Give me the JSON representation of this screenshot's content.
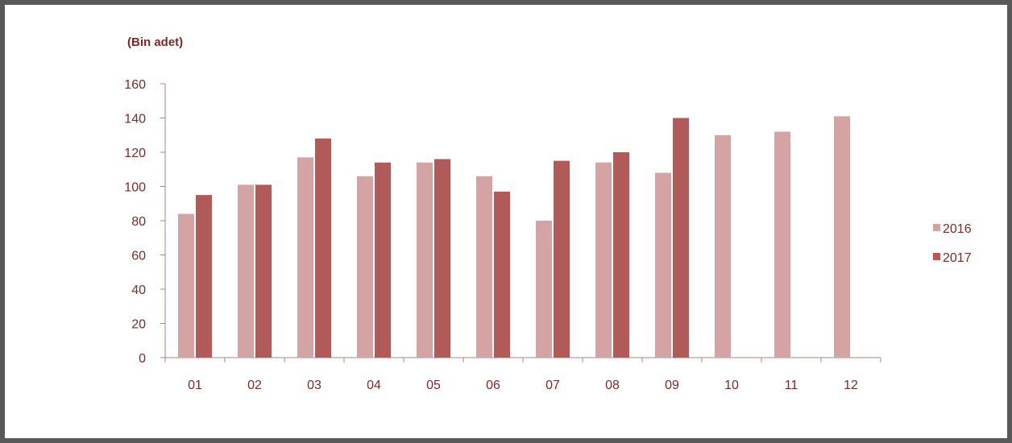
{
  "chart_data": {
    "type": "bar",
    "unit_label": "(Bin adet)",
    "categories": [
      "01",
      "02",
      "03",
      "04",
      "05",
      "06",
      "07",
      "08",
      "09",
      "10",
      "11",
      "12"
    ],
    "series": [
      {
        "name": "2016",
        "color": "#d4a3a3",
        "values": [
          84,
          101,
          117,
          106,
          114,
          106,
          80,
          114,
          108,
          130,
          132,
          141
        ]
      },
      {
        "name": "2017",
        "color": "#b05a5a",
        "values": [
          95,
          101,
          128,
          114,
          116,
          97,
          115,
          120,
          140,
          null,
          null,
          null
        ]
      }
    ],
    "ylim": [
      0,
      160
    ],
    "yticks": [
      0,
      20,
      40,
      60,
      80,
      100,
      120,
      140,
      160
    ],
    "grid": false,
    "legend_position": "right",
    "text_color": "#7a2a2a",
    "axis_color": "#b08080"
  }
}
